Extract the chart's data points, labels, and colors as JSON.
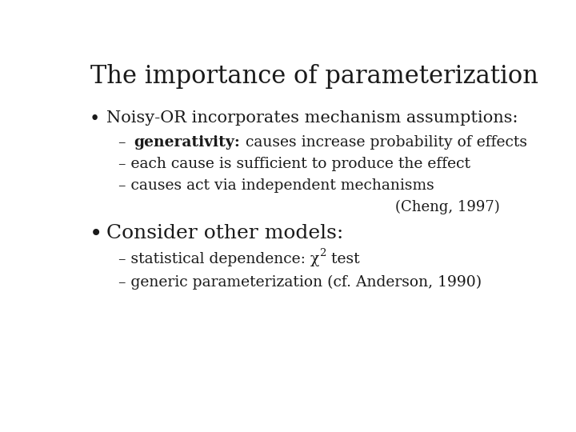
{
  "title": "The importance of parameterization",
  "background_color": "#ffffff",
  "text_color": "#1a1a1a",
  "title_fontsize": 22,
  "body_fontsize": 15,
  "sub_fontsize": 13.5,
  "citation_fontsize": 13,
  "bullet1": "Noisy-OR incorporates mechanism assumptions:",
  "sub1a_bold": "generativity:",
  "sub1a_rest": " causes increase probability of effects",
  "sub1b": "each cause is sufficient to produce the effect",
  "sub1c": "causes act via independent mechanisms",
  "citation": "(Cheng, 1997)",
  "bullet2": "Consider other models:",
  "sub2a_plain": "statistical dependence: χ",
  "sub2a_sup": "2",
  "sub2a_rest": " test",
  "sub2b": "generic parameterization (cf. Anderson, 1990)",
  "font": "DejaVu Serif",
  "dash": "– "
}
